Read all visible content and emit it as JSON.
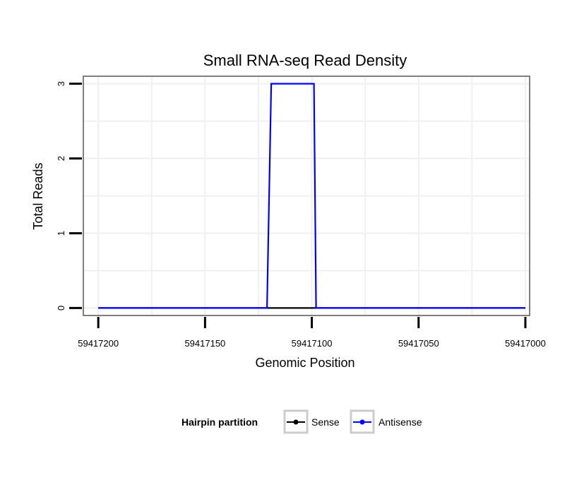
{
  "chart_data": {
    "type": "line",
    "title": "Small RNA-seq Read Density",
    "xlabel": "Genomic Position",
    "ylabel": "Total Reads",
    "xlim": [
      59417207,
      59416998
    ],
    "x_reversed": true,
    "ylim": [
      -0.1,
      3.1
    ],
    "x_ticks": [
      59417200,
      59417150,
      59417100,
      59417050,
      59417000
    ],
    "x_tick_labels": [
      "59417200",
      "59417150",
      "59417100",
      "59417050",
      "59417000"
    ],
    "y_ticks": [
      0,
      1,
      2,
      3
    ],
    "y_tick_labels": [
      "0",
      "1",
      "2",
      "3"
    ],
    "grid": true,
    "legend": {
      "title": "Hairpin partition",
      "placement": "bottom"
    },
    "series": [
      {
        "name": "Sense",
        "color": "#000000",
        "x": [
          59417200,
          59417000
        ],
        "y": [
          0,
          0
        ]
      },
      {
        "name": "Antisense",
        "color": "#0000ff",
        "x": [
          59417200,
          59417121,
          59417119,
          59417099,
          59417098,
          59417000
        ],
        "y": [
          0,
          0,
          3,
          3,
          0,
          0
        ]
      }
    ]
  }
}
